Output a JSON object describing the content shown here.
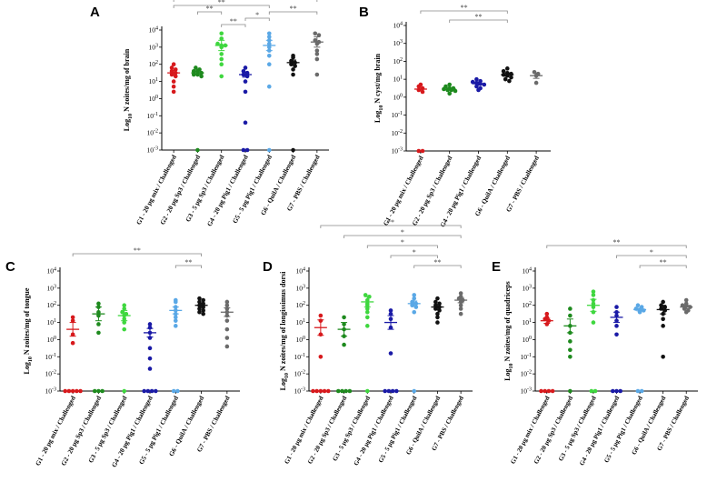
{
  "figure": {
    "description_colors": {
      "G1": "#d7191c",
      "G2": "#1e8a1e",
      "G3": "#3fd73f",
      "G4": "#1a1aa6",
      "G5": "#5aa8e6",
      "G6": "#111111",
      "G7": "#6b6b6b"
    }
  },
  "chart_data": [
    {
      "panel": "A",
      "type": "scatter",
      "scale": "log10",
      "ylabel": "Log10 N zoites/mg of brain",
      "ylim_exp": [
        -3,
        4
      ],
      "tick_labels": [
        "10-3",
        "10-2",
        "10-1",
        "100",
        "101",
        "102",
        "103",
        "104"
      ],
      "categories": [
        "G1 - 20 µg mix / Challenged",
        "G2 - 20 µg Sp3 / Challenged",
        "G3 - 5 µg Sp3 / Challenged",
        "G4 - 20 µg Pig1 / Challenged",
        "G5 - 5 µg Pig1 / Challenged",
        "G6 - QuilA / Challenged",
        "G7 - PBS / Challenged"
      ],
      "colors": [
        "#d7191c",
        "#1e8a1e",
        "#3fd73f",
        "#1a1aa6",
        "#5aa8e6",
        "#111111",
        "#6b6b6b"
      ],
      "series": [
        {
          "name": "G1",
          "mean": 1.5,
          "sem": 0.15,
          "points": [
            2.0,
            1.8,
            1.7,
            1.6,
            1.5,
            1.4,
            1.3,
            1.0,
            0.7,
            0.4
          ]
        },
        {
          "name": "G2",
          "mean": 1.5,
          "sem": 0.1,
          "points": [
            1.8,
            1.7,
            1.6,
            1.6,
            1.5,
            1.4,
            1.4,
            1.3,
            -3.0
          ]
        },
        {
          "name": "G3",
          "mean": 3.1,
          "sem": 0.3,
          "points": [
            3.8,
            3.5,
            3.2,
            3.1,
            3.1,
            3.0,
            2.6,
            2.3,
            2.0,
            1.3
          ]
        },
        {
          "name": "G4",
          "mean": 1.4,
          "sem": 0.15,
          "points": [
            1.8,
            1.6,
            1.5,
            1.4,
            1.3,
            1.0,
            0.4,
            -1.4,
            -3.0,
            -3.0
          ]
        },
        {
          "name": "G5",
          "mean": 3.1,
          "sem": 0.3,
          "points": [
            3.8,
            3.6,
            3.4,
            3.2,
            3.0,
            2.8,
            2.5,
            2.0,
            0.7,
            -3.0
          ]
        },
        {
          "name": "G6",
          "mean": 2.1,
          "sem": 0.15,
          "points": [
            2.5,
            2.4,
            2.2,
            2.1,
            2.0,
            1.9,
            1.7,
            1.4,
            -3.0
          ]
        },
        {
          "name": "G7",
          "mean": 3.3,
          "sem": 0.3,
          "points": [
            3.8,
            3.7,
            3.4,
            3.3,
            3.2,
            2.8,
            2.6,
            2.3,
            1.4
          ]
        }
      ],
      "significance": [
        {
          "from": 0,
          "to": 6,
          "label": "*",
          "tier": 5
        },
        {
          "from": 0,
          "to": 4,
          "label": "**",
          "tier": 4
        },
        {
          "from": 1,
          "to": 2,
          "label": "**",
          "tier": 3
        },
        {
          "from": 4,
          "to": 6,
          "label": "**",
          "tier": 3
        },
        {
          "from": 3,
          "to": 4,
          "label": "*",
          "tier": 2
        },
        {
          "from": 2,
          "to": 3,
          "label": "**",
          "tier": 1
        }
      ]
    },
    {
      "panel": "B",
      "type": "scatter",
      "scale": "log10",
      "ylabel": "Log10 N cyst/mg brain",
      "ylim_exp": [
        -3,
        4
      ],
      "tick_labels": [
        "10-3",
        "10-2",
        "10-1",
        "100",
        "101",
        "102",
        "103",
        "104"
      ],
      "categories": [
        "G1 - 20 µg mix / Challenged",
        "G2 - 20 µg Sp3 / Challenged",
        "G4 - 20 µg Pig1 / Challenged",
        "G6 - QuilA / Challenged",
        "G7 - PBS / Challenged"
      ],
      "colors": [
        "#d7191c",
        "#1e8a1e",
        "#1a1aa6",
        "#111111",
        "#6b6b6b"
      ],
      "series": [
        {
          "name": "G1",
          "mean": 0.45,
          "sem": 0.1,
          "points": [
            0.7,
            0.6,
            0.5,
            0.4,
            0.3,
            -3.0,
            -3.0
          ]
        },
        {
          "name": "G2",
          "mean": 0.45,
          "sem": 0.05,
          "points": [
            0.7,
            0.6,
            0.5,
            0.5,
            0.45,
            0.4,
            0.4,
            0.35,
            0.2
          ]
        },
        {
          "name": "G4",
          "mean": 0.75,
          "sem": 0.08,
          "points": [
            1.0,
            0.9,
            0.85,
            0.8,
            0.75,
            0.7,
            0.6,
            0.5,
            0.4
          ]
        },
        {
          "name": "G6",
          "mean": 1.25,
          "sem": 0.08,
          "points": [
            1.6,
            1.45,
            1.35,
            1.3,
            1.25,
            1.2,
            1.1,
            1.0,
            0.9
          ]
        },
        {
          "name": "G7",
          "mean": 1.2,
          "sem": 0.15,
          "points": [
            1.4,
            1.3,
            1.2,
            0.8
          ]
        }
      ],
      "significance": [
        {
          "from": 0,
          "to": 3,
          "label": "**",
          "tier": 2
        },
        {
          "from": 1,
          "to": 3,
          "label": "**",
          "tier": 1
        }
      ]
    },
    {
      "panel": "C",
      "type": "scatter",
      "scale": "log10",
      "ylabel": "Log10 N zoites/mg of tongue",
      "ylim_exp": [
        -3,
        4
      ],
      "tick_labels": [
        "10-3",
        "10-2",
        "10-1",
        "100",
        "101",
        "102",
        "103",
        "104"
      ],
      "categories": [
        "G1 - 20 µg mix / Challenged",
        "G2 - 20 µg Sp3 / Challenged",
        "G3 - 5 µg Sp3 / Challenged",
        "G4 - 20 µg Pig1 / Challenged",
        "G5 - 5 µg Pig1 / Challenged",
        "G6 - QuilA / Challenged",
        "G7 - PBS / Challenged"
      ],
      "colors": [
        "#d7191c",
        "#1e8a1e",
        "#3fd73f",
        "#1a1aa6",
        "#5aa8e6",
        "#111111",
        "#6b6b6b"
      ],
      "series": [
        {
          "name": "G1",
          "mean": 0.6,
          "sem": 0.4,
          "points": [
            1.3,
            1.1,
            0.3,
            -0.2,
            -3.0,
            -3.0,
            -3.0,
            -3.0,
            -3.0
          ]
        },
        {
          "name": "G2",
          "mean": 1.5,
          "sem": 0.4,
          "points": [
            2.1,
            1.9,
            1.6,
            1.4,
            0.9,
            0.4,
            -3.0,
            -3.0,
            -3.0
          ]
        },
        {
          "name": "G3",
          "mean": 1.4,
          "sem": 0.3,
          "points": [
            2.0,
            1.8,
            1.6,
            1.5,
            1.4,
            1.2,
            1.0,
            0.6,
            -3.0
          ]
        },
        {
          "name": "G4",
          "mean": 0.4,
          "sem": 0.25,
          "points": [
            0.9,
            0.7,
            0.4,
            0.1,
            -0.5,
            -1.1,
            -1.7,
            -3.0,
            -3.0,
            -3.0,
            -3.0
          ]
        },
        {
          "name": "G5",
          "mean": 1.7,
          "sem": 0.2,
          "points": [
            2.3,
            2.2,
            1.9,
            1.7,
            1.5,
            1.3,
            1.1,
            0.8,
            -3.0,
            -3.0
          ]
        },
        {
          "name": "G6",
          "mean": 2.0,
          "sem": 0.12,
          "points": [
            2.4,
            2.3,
            2.2,
            2.1,
            2.0,
            1.9,
            1.8,
            1.7,
            1.6,
            1.5
          ]
        },
        {
          "name": "G7",
          "mean": 1.6,
          "sem": 0.25,
          "points": [
            2.2,
            2.0,
            1.8,
            1.6,
            1.4,
            1.1,
            0.6,
            0.1,
            -0.4
          ]
        }
      ],
      "significance": [
        {
          "from": 0,
          "to": 5,
          "label": "**",
          "tier": 2
        },
        {
          "from": 4,
          "to": 5,
          "label": "**",
          "tier": 1
        }
      ]
    },
    {
      "panel": "D",
      "type": "scatter",
      "scale": "log10",
      "ylabel": "Log10 N zoites/mg of longissimus dorsi",
      "ylim_exp": [
        -3,
        4
      ],
      "tick_labels": [
        "10-3",
        "10-2",
        "10-1",
        "100",
        "101",
        "102",
        "103",
        "104"
      ],
      "categories": [
        "G1 - 20 µg mix / Challenged",
        "G2 - 20 µg Sp3 / Challenged",
        "G3 - 5 µg Sp3 / Challenged",
        "G4 - 20 µg Pig1 / Challenged",
        "G5 - 5 µg Pig1 / Challenged",
        "G6 - QuilA / Challenged",
        "G7 - PBS / Challenged"
      ],
      "colors": [
        "#d7191c",
        "#1e8a1e",
        "#3fd73f",
        "#1a1aa6",
        "#5aa8e6",
        "#111111",
        "#6b6b6b"
      ],
      "series": [
        {
          "name": "G1",
          "mean": 0.7,
          "sem": 0.45,
          "points": [
            1.4,
            1.1,
            0.3,
            -1.0,
            -3.0,
            -3.0,
            -3.0,
            -3.0,
            -3.0
          ]
        },
        {
          "name": "G2",
          "mean": 0.6,
          "sem": 0.4,
          "points": [
            1.3,
            0.9,
            0.6,
            0.2,
            -0.3,
            -3.0,
            -3.0,
            -3.0,
            -3.0
          ]
        },
        {
          "name": "G3",
          "mean": 2.2,
          "sem": 0.3,
          "points": [
            2.6,
            2.5,
            2.3,
            2.1,
            2.0,
            1.8,
            1.6,
            1.3,
            0.8,
            -3.0
          ]
        },
        {
          "name": "G4",
          "mean": 1.0,
          "sem": 0.4,
          "points": [
            1.7,
            1.5,
            1.2,
            0.7,
            -0.8,
            -3.0,
            -3.0,
            -3.0,
            -3.0
          ]
        },
        {
          "name": "G5",
          "mean": 2.1,
          "sem": 0.15,
          "points": [
            2.6,
            2.4,
            2.2,
            2.1,
            2.0,
            1.9,
            1.6,
            -3.0
          ]
        },
        {
          "name": "G6",
          "mean": 1.9,
          "sem": 0.15,
          "points": [
            2.4,
            2.2,
            2.1,
            2.0,
            1.9,
            1.8,
            1.7,
            1.5,
            1.3,
            1.0
          ]
        },
        {
          "name": "G7",
          "mean": 2.3,
          "sem": 0.15,
          "points": [
            2.7,
            2.5,
            2.4,
            2.3,
            2.2,
            2.0,
            1.8,
            1.5
          ]
        }
      ],
      "significance": [
        {
          "from": 0,
          "to": 6,
          "label": "**",
          "tier": 5
        },
        {
          "from": 1,
          "to": 6,
          "label": "*",
          "tier": 4
        },
        {
          "from": 2,
          "to": 5,
          "label": "*",
          "tier": 3
        },
        {
          "from": 3,
          "to": 5,
          "label": "*",
          "tier": 2
        },
        {
          "from": 4,
          "to": 6,
          "label": "**",
          "tier": 1
        }
      ]
    },
    {
      "panel": "E",
      "type": "scatter",
      "scale": "log10",
      "ylabel": "Log10 N zoites/mg of quadriceps",
      "ylim_exp": [
        -3,
        4
      ],
      "tick_labels": [
        "10-3",
        "10-2",
        "10-1",
        "100",
        "101",
        "102",
        "103",
        "104"
      ],
      "categories": [
        "G1 - 20 µg mix / Challenged",
        "G2 - 20 µg Sp3 / Challenged",
        "G3 - 5 µg Sp3 / Challenged",
        "G4 - 20 µg Pig1 / Challenged",
        "G5 - 5 µg Pig1 / Challenged",
        "G6 - QuilA / Challenged",
        "G7 - PBS / Challenged"
      ],
      "colors": [
        "#d7191c",
        "#1e8a1e",
        "#3fd73f",
        "#1a1aa6",
        "#5aa8e6",
        "#111111",
        "#6b6b6b"
      ],
      "series": [
        {
          "name": "G1",
          "mean": 1.1,
          "sem": 0.15,
          "points": [
            1.5,
            1.3,
            1.2,
            1.1,
            0.9,
            -3.0,
            -3.0,
            -3.0,
            -3.0
          ]
        },
        {
          "name": "G2",
          "mean": 0.8,
          "sem": 0.4,
          "points": [
            1.8,
            1.4,
            0.8,
            0.4,
            -0.1,
            -0.6,
            -1.0,
            -3.0
          ]
        },
        {
          "name": "G3",
          "mean": 2.0,
          "sem": 0.35,
          "points": [
            2.8,
            2.6,
            2.3,
            2.1,
            1.9,
            1.6,
            1.0,
            -3.0,
            -3.0
          ]
        },
        {
          "name": "G4",
          "mean": 1.3,
          "sem": 0.3,
          "points": [
            1.9,
            1.6,
            1.4,
            1.1,
            0.8,
            0.3,
            -3.0,
            -3.0,
            -3.0
          ]
        },
        {
          "name": "G5",
          "mean": 1.75,
          "sem": 0.08,
          "points": [
            2.0,
            1.9,
            1.8,
            1.75,
            1.7,
            1.6,
            -3.0,
            -3.0
          ]
        },
        {
          "name": "G6",
          "mean": 1.75,
          "sem": 0.25,
          "points": [
            2.2,
            2.0,
            1.9,
            1.8,
            1.7,
            1.5,
            1.2,
            0.8,
            -1.0
          ]
        },
        {
          "name": "G7",
          "mean": 1.9,
          "sem": 0.1,
          "points": [
            2.3,
            2.1,
            2.0,
            1.95,
            1.9,
            1.8,
            1.7,
            1.6
          ]
        }
      ],
      "significance": [
        {
          "from": 0,
          "to": 6,
          "label": "**",
          "tier": 3
        },
        {
          "from": 3,
          "to": 6,
          "label": "*",
          "tier": 2
        },
        {
          "from": 4,
          "to": 6,
          "label": "**",
          "tier": 1
        }
      ]
    }
  ]
}
